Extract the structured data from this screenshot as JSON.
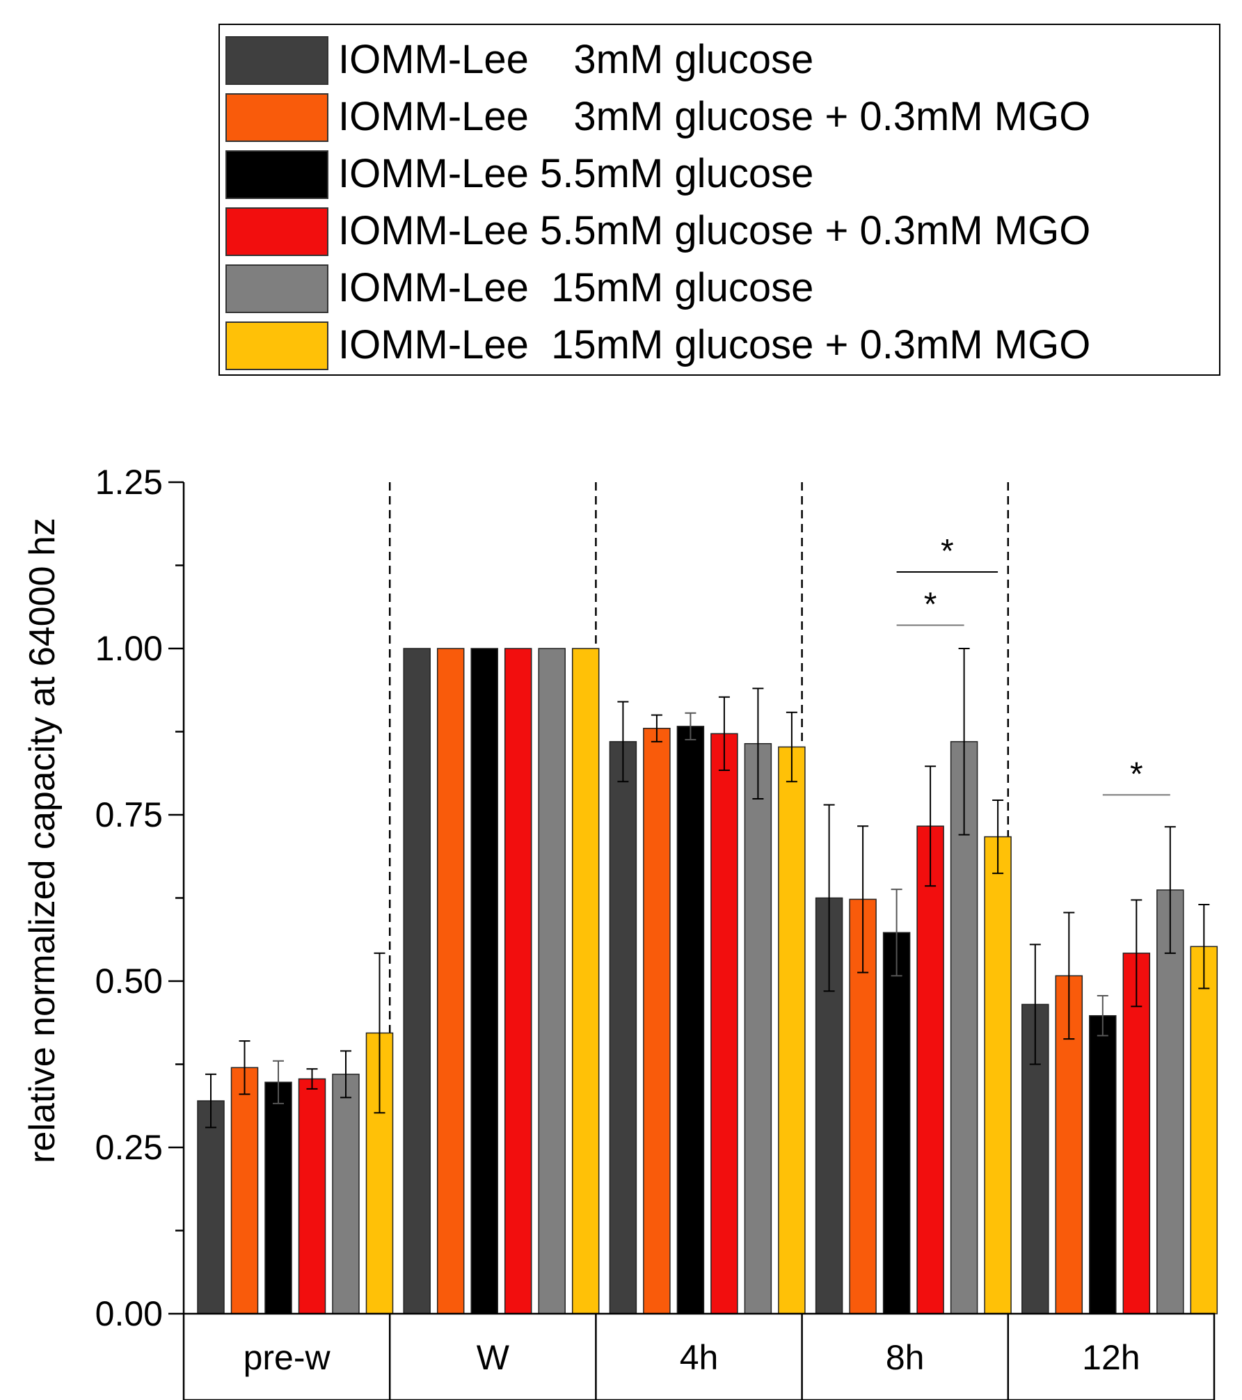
{
  "legend": {
    "items": [
      {
        "label": "IOMM-Lee    3mM glucose",
        "color": "#3f3f3f"
      },
      {
        "label": "IOMM-Lee    3mM glucose + 0.3mM MGO",
        "color": "#f95b0b"
      },
      {
        "label": "IOMM-Lee 5.5mM glucose",
        "color": "#000000"
      },
      {
        "label": "IOMM-Lee 5.5mM glucose + 0.3mM MGO",
        "color": "#f20e0e"
      },
      {
        "label": "IOMM-Lee  15mM glucose",
        "color": "#7f7f7f"
      },
      {
        "label": "IOMM-Lee  15mM glucose + 0.3mM MGO",
        "color": "#ffc107"
      }
    ]
  },
  "chart_data": {
    "type": "bar",
    "title": "",
    "xlabel": "",
    "ylabel": "relative normalized capacity at 64000 hz",
    "ylim": [
      0,
      1.25
    ],
    "yticks": [
      "0.00",
      "0.25",
      "0.50",
      "0.75",
      "1.00",
      "1.25"
    ],
    "categories": [
      "pre-w",
      "W",
      "4h",
      "8h",
      "12h"
    ],
    "series": [
      {
        "name": "IOMM-Lee 3mM glucose",
        "color": "#3f3f3f",
        "values": [
          0.32,
          1.0,
          0.86,
          0.625,
          0.465
        ],
        "errors": [
          0.04,
          0,
          0.06,
          0.14,
          0.09
        ]
      },
      {
        "name": "IOMM-Lee 3mM glucose + 0.3mM MGO",
        "color": "#f95b0b",
        "values": [
          0.37,
          1.0,
          0.88,
          0.623,
          0.508
        ],
        "errors": [
          0.04,
          0,
          0.02,
          0.11,
          0.095
        ]
      },
      {
        "name": "IOMM-Lee 5.5mM glucose",
        "color": "#000000",
        "values": [
          0.348,
          1.0,
          0.883,
          0.573,
          0.448
        ],
        "errors": [
          0.032,
          0,
          0.02,
          0.065,
          0.03
        ]
      },
      {
        "name": "IOMM-Lee 5.5mM glucose + 0.3mM MGO",
        "color": "#f20e0e",
        "values": [
          0.353,
          1.0,
          0.872,
          0.733,
          0.542
        ],
        "errors": [
          0.015,
          0,
          0.055,
          0.09,
          0.08
        ]
      },
      {
        "name": "IOMM-Lee 15mM glucose",
        "color": "#7f7f7f",
        "values": [
          0.36,
          1.0,
          0.857,
          0.86,
          0.637
        ],
        "errors": [
          0.035,
          0,
          0.083,
          0.14,
          0.095
        ]
      },
      {
        "name": "IOMM-Lee 15mM glucose + 0.3mM MGO",
        "color": "#ffc107",
        "values": [
          0.422,
          1.0,
          0.852,
          0.717,
          0.552
        ],
        "errors": [
          0.12,
          0,
          0.052,
          0.055,
          0.063
        ]
      }
    ],
    "annotations": [
      {
        "text": "*",
        "category": "8h",
        "from_series": 2,
        "to_series": 5,
        "y": 1.115
      },
      {
        "text": "*",
        "category": "8h",
        "from_series": 2,
        "to_series": 4,
        "y": 1.035
      },
      {
        "text": "*",
        "category": "12h",
        "from_series": 2,
        "to_series": 4,
        "y": 0.78
      }
    ]
  }
}
